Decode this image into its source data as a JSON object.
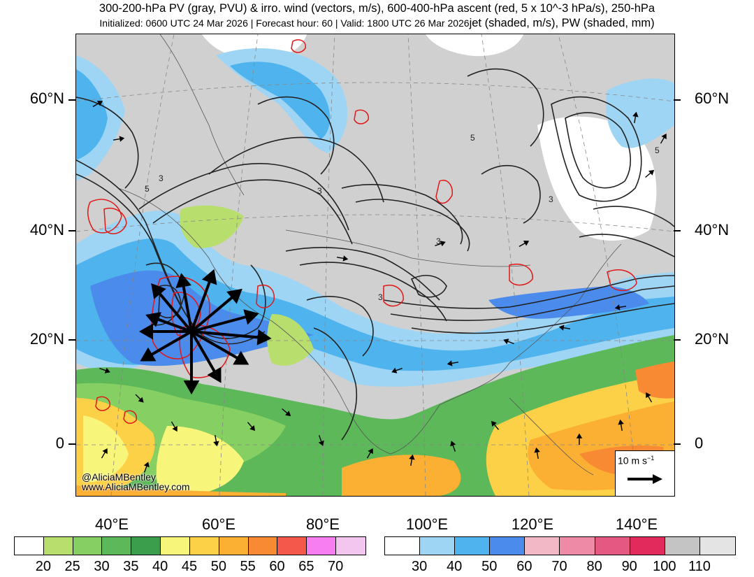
{
  "header": {
    "title_line1": "300-200-hPa PV (gray, PVU) & irro. wind (vectors, m/s), 600-400-hPa ascent (red, 5 x 10^-3 hPa/s), 250-hPa",
    "title_line2": "Initialized: 0600 UTC 24 Mar 2026 | Forecast hour: 60 | Valid: 1800 UTC 26 Mar 2026",
    "title_line2_tail": "jet (shaded, m/s), PW (shaded, mm)"
  },
  "map": {
    "lat_labels_left": [
      "60°N",
      "40°N",
      "20°N",
      "0"
    ],
    "lat_labels_right": [
      "60°N",
      "40°N",
      "20°N",
      "0"
    ],
    "lon_labels": [
      "40°E",
      "60°E",
      "80°E",
      "100°E",
      "120°E",
      "140°E"
    ],
    "contour_labels": [
      "3",
      "5",
      "3",
      "3",
      "3",
      "5",
      "5",
      "3"
    ],
    "credit_handle": "@AliciaMBentley",
    "credit_url": "www.AliciaMBentley.com",
    "reference_vector_label": "10 m s",
    "reference_vector_exponent": "−1"
  },
  "colorbar_pw": {
    "colors": [
      "#ffffff",
      "#b8df6e",
      "#86cf62",
      "#5cb858",
      "#3a9e4c",
      "#f8f67a",
      "#fcd147",
      "#fbb034",
      "#f88a33",
      "#f3584a",
      "#f77ef0",
      "#f3c6f0"
    ],
    "labels": [
      "20",
      "25",
      "30",
      "35",
      "40",
      "45",
      "50",
      "55",
      "60",
      "65",
      "70"
    ]
  },
  "colorbar_jet": {
    "colors": [
      "#ffffff",
      "#9ed5f4",
      "#4fb3ee",
      "#4a8bec",
      "#f2b8c6",
      "#ee8aa6",
      "#e55882",
      "#e22a5d",
      "#c4c4c4",
      "#e4e4e4"
    ],
    "labels": [
      "30",
      "40",
      "50",
      "60",
      "70",
      "80",
      "90",
      "100",
      "110"
    ]
  }
}
